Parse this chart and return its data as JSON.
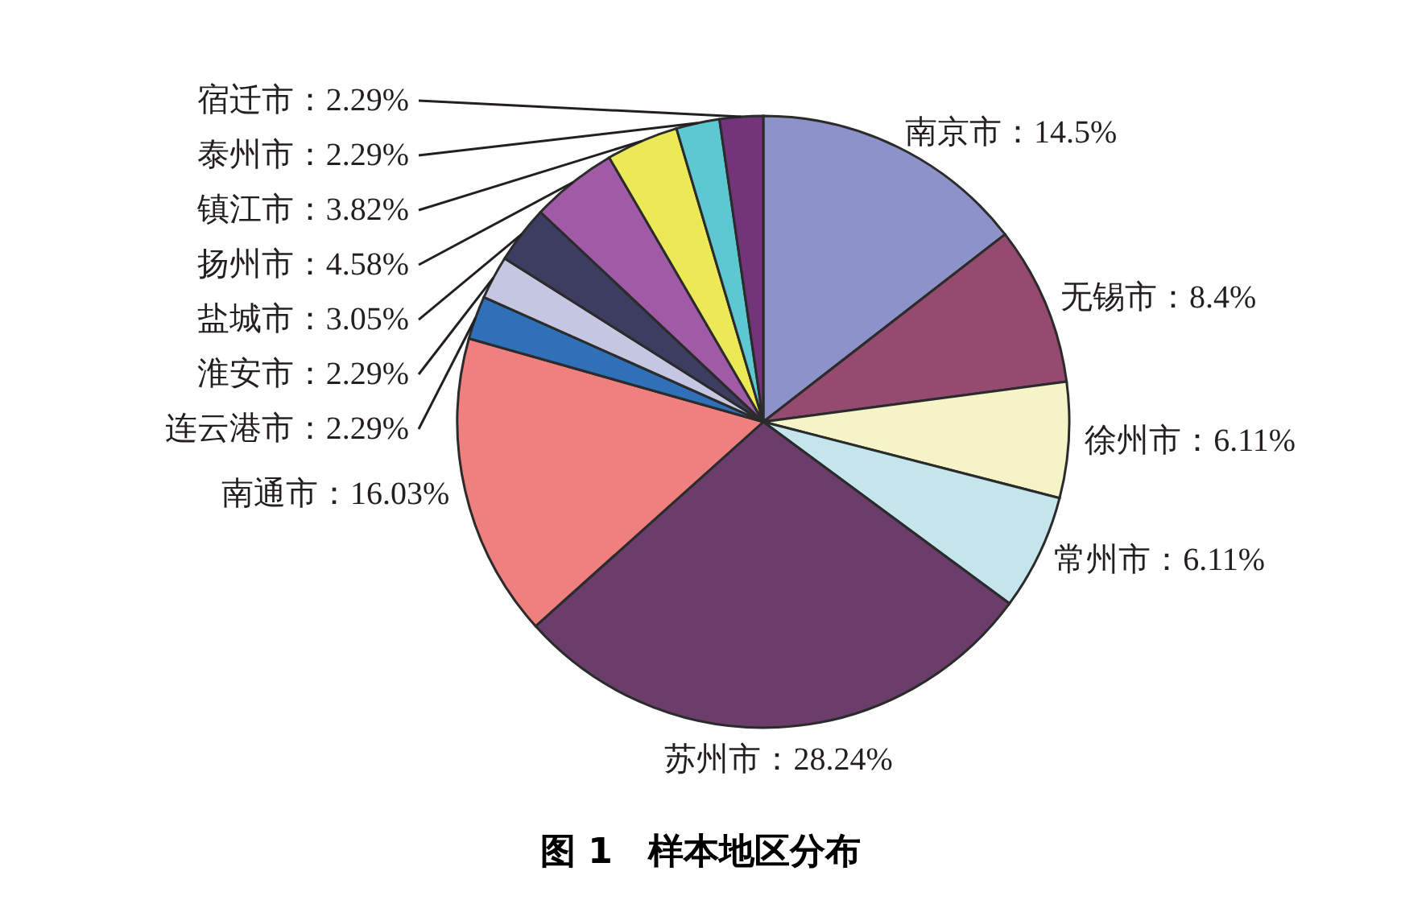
{
  "chart_data": {
    "type": "pie",
    "title": "图 1　样本地区分布",
    "categories": [
      "南京市",
      "无锡市",
      "徐州市",
      "常州市",
      "苏州市",
      "南通市",
      "连云港市",
      "淮安市",
      "盐城市",
      "扬州市",
      "镇江市",
      "泰州市",
      "宿迁市"
    ],
    "values": [
      14.5,
      8.4,
      6.11,
      6.11,
      28.24,
      16.03,
      2.29,
      2.29,
      3.05,
      4.58,
      3.82,
      2.29,
      2.29
    ],
    "value_labels": [
      "14.5%",
      "8.4%",
      "6.11%",
      "6.11%",
      "28.24%",
      "16.03%",
      "2.29%",
      "2.29%",
      "3.05%",
      "4.58%",
      "3.82%",
      "2.29%",
      "2.29%"
    ],
    "colors": [
      "#8d93c8",
      "#954a6f",
      "#f4f4c8",
      "#c5e5ec",
      "#6a3d6a",
      "#f08080",
      "#3070b8",
      "#c4c6e2",
      "#3c3d60",
      "#a05aa6",
      "#ece957",
      "#5ec8d2",
      "#74347a"
    ]
  }
}
